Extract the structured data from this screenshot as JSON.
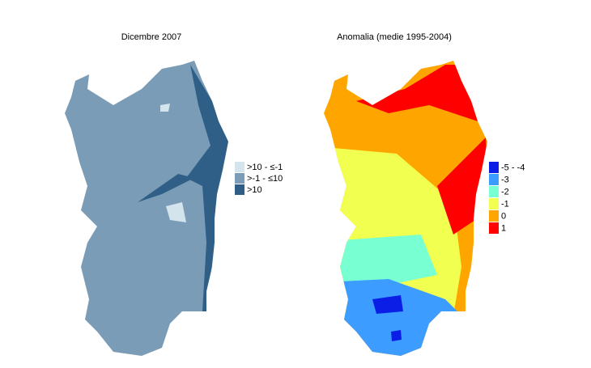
{
  "maps": [
    {
      "title": "Dicembre 2007",
      "fill": "#7b9cb6",
      "legend": [
        {
          "label": ">10 - ≤-1",
          "color": "#d4e4ec"
        },
        {
          "label": ">-1 - ≤10",
          "color": "#7b9cb6"
        },
        {
          "label": ">10",
          "color": "#2f5f86"
        }
      ]
    },
    {
      "title": "Anomalia (medie 1995-2004)",
      "fill": "#ffa500",
      "legend": [
        {
          "label": "-5 - -4",
          "color": "#0a1ee6"
        },
        {
          "label": "-3",
          "color": "#3c9cff"
        },
        {
          "label": "-2",
          "color": "#78ffd2"
        },
        {
          "label": "-1",
          "color": "#f0ff50"
        },
        {
          "label": "0",
          "color": "#ffa500"
        },
        {
          "label": "1",
          "color": "#ff0000"
        }
      ]
    }
  ]
}
